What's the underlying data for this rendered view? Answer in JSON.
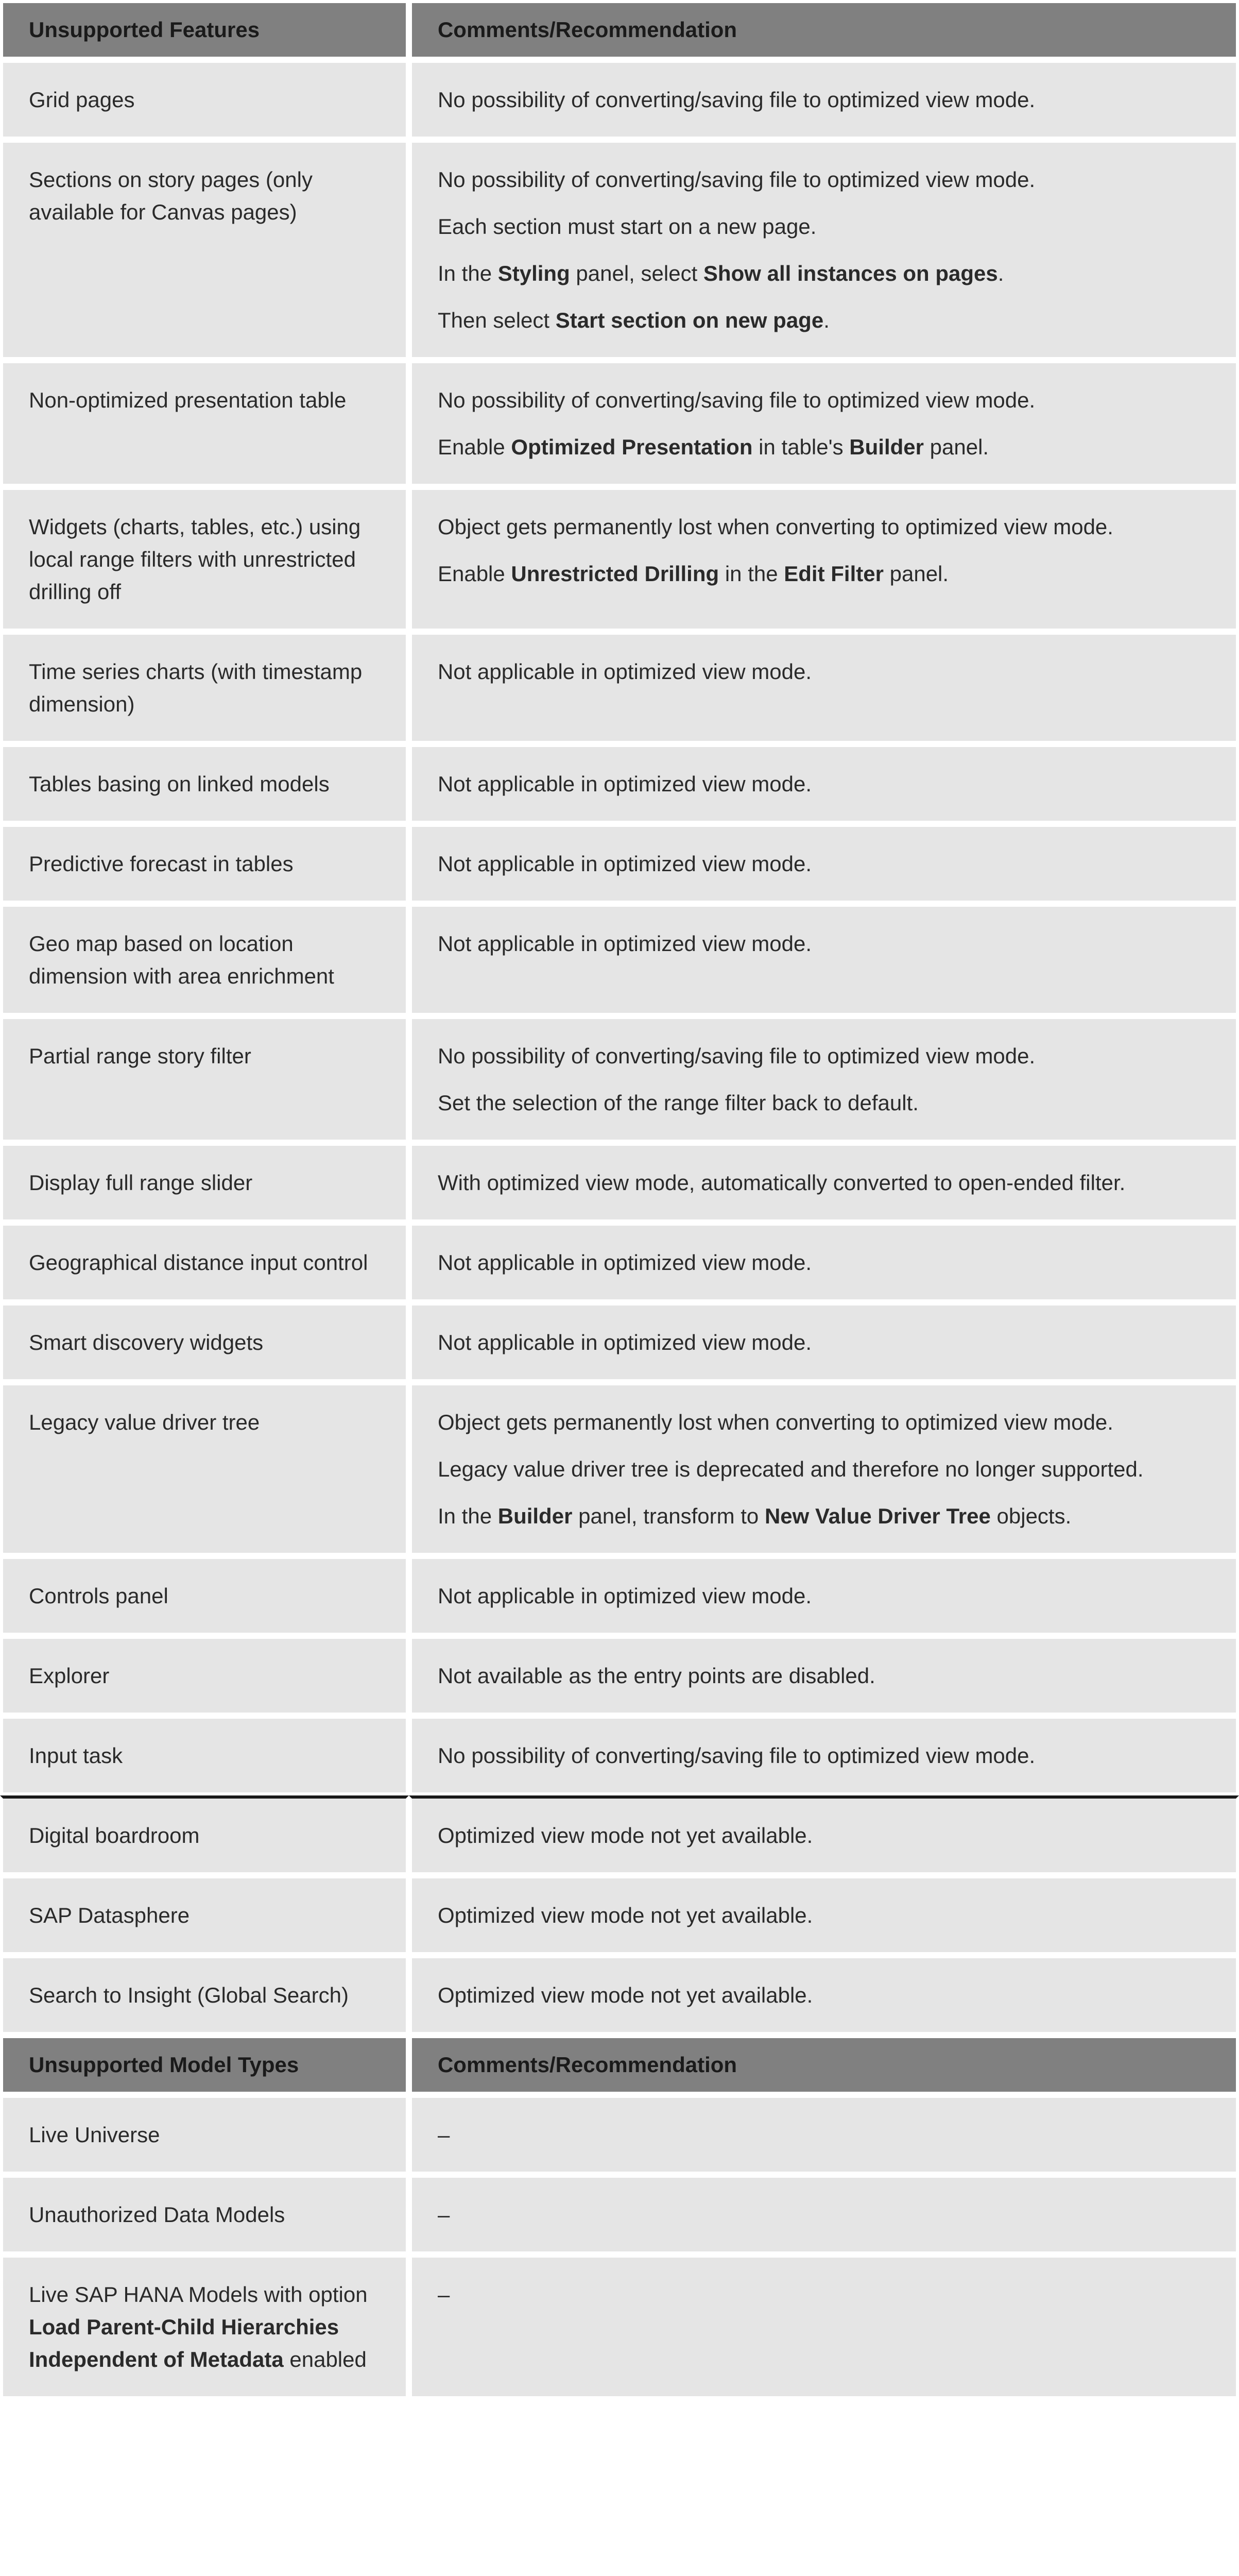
{
  "colors": {
    "header_bg": "#808080",
    "cell_bg": "#e5e5e5",
    "text": "#2a2a2a",
    "border": "#ffffff",
    "divider": "#1a1a1a"
  },
  "headers1": {
    "col1": "Unsupported Features",
    "col2": "Comments/Recommendation"
  },
  "headers2": {
    "col1": "Unsupported Model Types",
    "col2": "Comments/Recommendation"
  },
  "rows1": [
    {
      "feature": "Grid pages",
      "comments": [
        {
          "segments": [
            {
              "t": "No possibility of converting/saving file to optimized view mode."
            }
          ]
        }
      ]
    },
    {
      "feature": "Sections on story pages (only available for Canvas pages)",
      "comments": [
        {
          "segments": [
            {
              "t": "No possibility of converting/saving file to optimized view mode."
            }
          ]
        },
        {
          "segments": [
            {
              "t": "Each section must start on a new page."
            }
          ]
        },
        {
          "segments": [
            {
              "t": "In the "
            },
            {
              "t": "Styling",
              "b": true
            },
            {
              "t": " panel, select "
            },
            {
              "t": "Show all instances on pages",
              "b": true
            },
            {
              "t": "."
            }
          ]
        },
        {
          "segments": [
            {
              "t": "Then select "
            },
            {
              "t": "Start section on new page",
              "b": true
            },
            {
              "t": "."
            }
          ]
        }
      ]
    },
    {
      "feature": "Non-optimized presentation table",
      "comments": [
        {
          "segments": [
            {
              "t": "No possibility of converting/saving file to optimized view mode."
            }
          ]
        },
        {
          "segments": [
            {
              "t": "Enable "
            },
            {
              "t": "Optimized Presentation",
              "b": true
            },
            {
              "t": " in table's "
            },
            {
              "t": "Builder",
              "b": true
            },
            {
              "t": " panel."
            }
          ]
        }
      ]
    },
    {
      "feature": "Widgets (charts, tables, etc.) using local range filters with unrestricted drilling off",
      "comments": [
        {
          "segments": [
            {
              "t": "Object gets permanently lost when converting to optimized view mode."
            }
          ]
        },
        {
          "segments": [
            {
              "t": "Enable "
            },
            {
              "t": "Unrestricted Drilling",
              "b": true
            },
            {
              "t": " in the "
            },
            {
              "t": "Edit Filter",
              "b": true
            },
            {
              "t": " panel."
            }
          ]
        }
      ]
    },
    {
      "feature": "Time series charts (with timestamp dimension)",
      "comments": [
        {
          "segments": [
            {
              "t": "Not applicable in optimized view mode."
            }
          ]
        }
      ]
    },
    {
      "feature": "Tables basing on linked models",
      "comments": [
        {
          "segments": [
            {
              "t": "Not applicable in optimized view mode."
            }
          ]
        }
      ]
    },
    {
      "feature": "Predictive forecast in tables",
      "comments": [
        {
          "segments": [
            {
              "t": "Not applicable in optimized view mode."
            }
          ]
        }
      ]
    },
    {
      "feature": "Geo map based on location dimension with area enrichment",
      "comments": [
        {
          "segments": [
            {
              "t": "Not applicable in optimized view mode."
            }
          ]
        }
      ]
    },
    {
      "feature": "Partial range story filter",
      "comments": [
        {
          "segments": [
            {
              "t": "No possibility of converting/saving file to optimized view mode."
            }
          ]
        },
        {
          "segments": [
            {
              "t": "Set the selection of the range filter back to default."
            }
          ]
        }
      ]
    },
    {
      "feature": "Display full range slider",
      "comments": [
        {
          "segments": [
            {
              "t": "With optimized view mode, automatically converted to open-ended filter."
            }
          ]
        }
      ]
    },
    {
      "feature": "Geographical distance input control",
      "comments": [
        {
          "segments": [
            {
              "t": "Not applicable in optimized view mode."
            }
          ]
        }
      ]
    },
    {
      "feature": "Smart discovery widgets",
      "comments": [
        {
          "segments": [
            {
              "t": "Not applicable in optimized view mode."
            }
          ]
        }
      ]
    },
    {
      "feature": "Legacy value driver tree",
      "comments": [
        {
          "segments": [
            {
              "t": "Object gets permanently lost when converting to optimized view mode."
            }
          ]
        },
        {
          "segments": [
            {
              "t": "Legacy value driver tree is deprecated and therefore no longer supported."
            }
          ]
        },
        {
          "segments": [
            {
              "t": "In the "
            },
            {
              "t": "Builder",
              "b": true
            },
            {
              "t": " panel, transform to "
            },
            {
              "t": "New Value Driver Tree",
              "b": true
            },
            {
              "t": " objects."
            }
          ]
        }
      ]
    },
    {
      "feature": "Controls panel",
      "comments": [
        {
          "segments": [
            {
              "t": "Not applicable in optimized view mode."
            }
          ]
        }
      ]
    },
    {
      "feature": "Explorer",
      "comments": [
        {
          "segments": [
            {
              "t": "Not available as the entry points are disabled."
            }
          ]
        }
      ]
    },
    {
      "feature": "Input task",
      "comments": [
        {
          "segments": [
            {
              "t": "No possibility of converting/saving file to optimized view mode."
            }
          ]
        }
      ]
    },
    {
      "feature": "Digital boardroom",
      "divider": true,
      "comments": [
        {
          "segments": [
            {
              "t": "Optimized view mode not yet available."
            }
          ]
        }
      ]
    },
    {
      "feature": "SAP Datasphere",
      "comments": [
        {
          "segments": [
            {
              "t": "Optimized view mode not yet available."
            }
          ]
        }
      ]
    },
    {
      "feature": "Search to Insight (Global Search)",
      "comments": [
        {
          "segments": [
            {
              "t": "Optimized view mode not yet available."
            }
          ]
        }
      ]
    }
  ],
  "rows2": [
    {
      "feature": "Live Universe",
      "comments": [
        {
          "segments": [
            {
              "t": "–"
            }
          ]
        }
      ]
    },
    {
      "feature": "Unauthorized Data Models",
      "comments": [
        {
          "segments": [
            {
              "t": "–"
            }
          ]
        }
      ]
    },
    {
      "feature_segments": [
        {
          "t": "Live SAP HANA Models with option "
        },
        {
          "t": "Load Parent-Child Hierarchies Independent of Metadata",
          "b": true
        },
        {
          "t": " enabled"
        }
      ],
      "comments": [
        {
          "segments": [
            {
              "t": "–"
            }
          ]
        }
      ]
    }
  ]
}
